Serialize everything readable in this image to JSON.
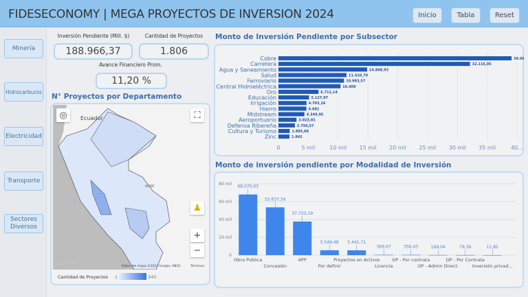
{
  "header": {
    "title": "FIDESECONOMY | MEGA PROYECTOS DE INVERSION 2024",
    "buttons": [
      "Inicio",
      "Tabla",
      "Reset"
    ]
  },
  "sidebar": {
    "items": [
      "Minería",
      "Hidrocarburos",
      "Electricidad",
      "Transporte",
      "Sectores Diversos"
    ]
  },
  "kpis": {
    "inversion_label": "Inversión Pendiente (Mill. $)",
    "inversion_value": "188.966,37",
    "proyectos_label": "Cantidad de Proyectos",
    "proyectos_value": "1.806",
    "avance_label": "Avance Financiero Prom.",
    "avance_value": "11,20 %"
  },
  "map": {
    "title": "N° Proyectos por Departamento",
    "label_ecuador": "Ecuador",
    "label_acre": "ACRE",
    "google": "Google",
    "attribution": "Datos del mapa ©2023 Google, INEGI",
    "terms": "Términos",
    "legend_title": "Cantidad de Proyectos",
    "legend_min": "1",
    "legend_max": "340",
    "colors": {
      "low": "#e6eefc",
      "high": "#3b73e0"
    }
  },
  "chart_data": [
    {
      "type": "bar",
      "orientation": "horizontal",
      "title": "Monto de Inversión Pendiente por Subsector",
      "categories": [
        "Cobre",
        "Carretera",
        "Agua y Saneamiento",
        "Salud",
        "Ferroviario",
        "Central Hidroeléctrica",
        "Oro",
        "Educación",
        "Irrigación",
        "Hierro",
        "Midstream",
        "Aeroportuario",
        "Defensa Ribereña",
        "Cultura y Turismo",
        "Zinc"
      ],
      "values": [
        39094.1,
        32116.05,
        14868.93,
        11410.79,
        10983.57,
        10409,
        6711.14,
        5127.97,
        4703.16,
        4681,
        4349.95,
        3023.81,
        2756.57,
        1895.66,
        1842
      ],
      "data_labels": [
        "39.094,1",
        "32.116,05",
        "14.868,93",
        "11.410,79",
        "10.983,57",
        "10.409",
        "6.711,14",
        "5.127,97",
        "4.703,16",
        "4.681",
        "4.349,95",
        "3.023,81",
        "2.756,57",
        "1.895,66",
        "1.842"
      ],
      "xticks": [
        "0",
        "5 mil",
        "10 mil",
        "15 mil",
        "20 mil",
        "25 mil",
        "30 mil",
        "35 mil",
        "40..."
      ],
      "xlim": [
        0,
        40000
      ],
      "grid": true,
      "color": "#1f5bb5"
    },
    {
      "type": "bar",
      "title": "Monto de inversión pendiente por Modalidad de Inversión",
      "categories": [
        "Obra Pública",
        "Concesión",
        "APP",
        "Por definir",
        "Proyectos en Activos",
        "Licencia",
        "OP - Por contrata",
        "OP - Admin Direct.",
        "OP - Por Contrata",
        "Inversión privad..."
      ],
      "values": [
        68070.03,
        53637.34,
        37723.19,
        5549.48,
        5441.71,
        369.07,
        356.43,
        169.04,
        79.39,
        11.85
      ],
      "data_labels": [
        "68.070,03",
        "53.637,34",
        "37.723,19",
        "5.549,48",
        "5.441,71",
        "369,07",
        "356,43",
        "169,04",
        "79,39",
        "11,85"
      ],
      "yticks": [
        "0",
        "20 mil",
        "40 mil",
        "60 mil",
        "80 mil"
      ],
      "ylim": [
        0,
        80000
      ],
      "grid": true,
      "color": "#3f86ec"
    }
  ]
}
